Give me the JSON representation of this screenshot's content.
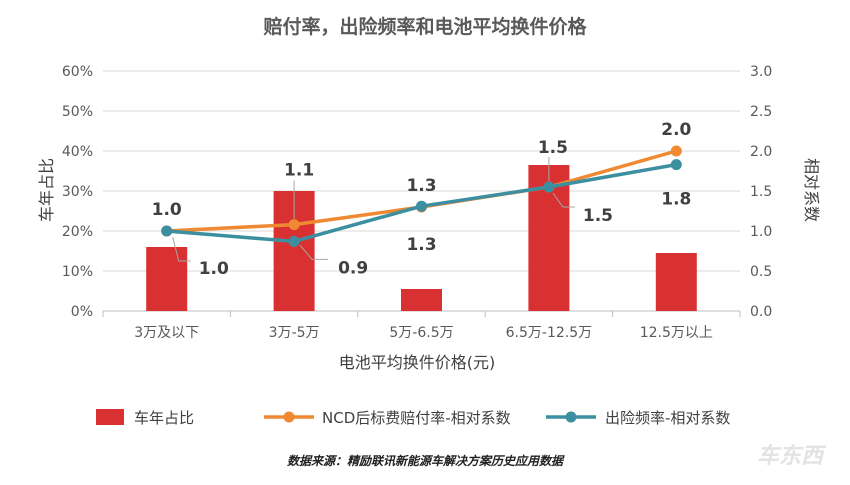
{
  "title": "赔付率，出险频率和电池平均换件价格",
  "source": "数据来源：精励联讯新能源车解决方案历史应用数据",
  "watermark": "车东西",
  "chart_data": {
    "type": "bar",
    "categories": [
      "3万及以下",
      "3万-5万",
      "5万-6.5万",
      "6.5万-12.5万",
      "12.5万以上"
    ],
    "xlabel": "电池平均换件价格(元)",
    "ylabel": "车年占比",
    "y2label": "相对系数",
    "ylim": [
      0,
      60
    ],
    "y2lim": [
      0,
      3.0
    ],
    "yticks": [
      "0%",
      "10%",
      "20%",
      "30%",
      "40%",
      "50%",
      "60%"
    ],
    "y2ticks": [
      "0.0",
      "0.5",
      "1.0",
      "1.5",
      "2.0",
      "2.5",
      "3.0"
    ],
    "grid": true,
    "legend_position": "bottom",
    "series": [
      {
        "name": "车年占比",
        "type": "bar",
        "axis": "left",
        "color": "#d93131",
        "values": [
          16,
          30,
          5.5,
          36.5,
          14.5
        ]
      },
      {
        "name": "NCD后标费赔付率-相对系数",
        "type": "line",
        "axis": "right",
        "color": "#ef8a33",
        "values": [
          1.0,
          1.08,
          1.3,
          1.55,
          2.0
        ],
        "labels": [
          "1.0",
          "1.1",
          "1.3",
          "1.5",
          "2.0"
        ]
      },
      {
        "name": "出险频率-相对系数",
        "type": "line",
        "axis": "right",
        "color": "#3b8fa0",
        "values": [
          1.0,
          0.87,
          1.31,
          1.55,
          1.83
        ],
        "labels": [
          "1.0",
          "0.9",
          "1.3",
          "1.5",
          "1.8"
        ]
      }
    ]
  }
}
